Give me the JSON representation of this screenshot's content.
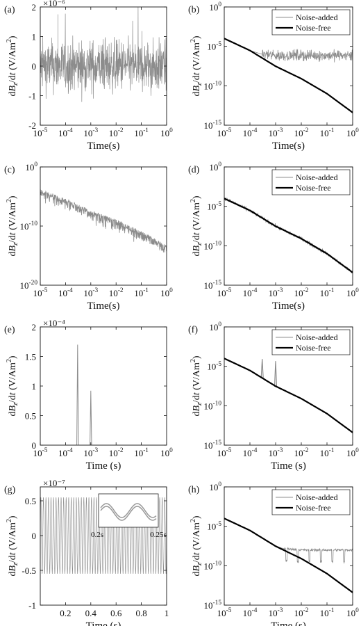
{
  "figure": {
    "xlabel": "Time(s)",
    "xlabel_alt": "Time (s)",
    "ylabel": "dBz/dt (V/Am²)"
  },
  "chart_data": [
    {
      "id": "a",
      "label": "(a)",
      "type": "line",
      "xscale": "log",
      "yscale": "linear",
      "xlim": [
        1e-05,
        1
      ],
      "ylim": [
        -2e-06,
        2e-06
      ],
      "xlabel": "Time(s)",
      "ylabel": "dBz/dt (V/Am²)",
      "y_multiplier": "×10⁻⁶",
      "yticks": [
        "-2",
        "-1",
        "0",
        "1",
        "2"
      ],
      "legend": null,
      "series": [
        {
          "color": "#8c8c8c",
          "style": "noise",
          "x": [
            1e-05,
            1
          ],
          "y": [
            -1.3e-06,
            1.7e-06
          ]
        }
      ]
    },
    {
      "id": "b",
      "label": "(b)",
      "type": "line",
      "xscale": "log",
      "yscale": "log",
      "xlim": [
        1e-05,
        1
      ],
      "ylim": [
        1e-15,
        1
      ],
      "xlabel": "Time(s)",
      "ylabel": "dBz/dt (V/Am²)",
      "yticks": [
        "10⁻¹⁵",
        "10⁻¹⁰",
        "10⁻⁵",
        "10⁰"
      ],
      "legend": "top-right",
      "series": [
        {
          "name": "Noise-added",
          "color": "#8c8c8c",
          "x": [
            1e-05,
            0.0001,
            0.0003,
            0.001,
            0.01,
            0.1,
            1
          ],
          "y": [
            0.0001,
            3e-06,
            1e-06,
            7e-07,
            7e-07,
            7e-07,
            7e-07
          ]
        },
        {
          "name": "Noise-free",
          "color": "#000000",
          "x": [
            1e-05,
            0.0001,
            0.001,
            0.01,
            0.1,
            1
          ],
          "y": [
            0.0001,
            3e-06,
            3e-08,
            8e-10,
            1e-11,
            4e-14
          ]
        }
      ]
    },
    {
      "id": "c",
      "label": "(c)",
      "type": "line",
      "xscale": "log",
      "yscale": "log",
      "xlim": [
        1e-05,
        1
      ],
      "ylim": [
        1e-20,
        1
      ],
      "xlabel": "Time(s)",
      "ylabel": "dBz/dt (V/Am²)",
      "yticks": [
        "10⁻²⁰",
        "10⁻¹⁰",
        "10⁰"
      ],
      "legend": null,
      "series": [
        {
          "color": "#8c8c8c",
          "style": "noisy-decay",
          "x": [
            1e-05,
            0.0001,
            0.001,
            0.01,
            0.1,
            1
          ],
          "y": [
            0.0001,
            3e-06,
            3e-08,
            8e-10,
            1e-11,
            4e-14
          ]
        }
      ]
    },
    {
      "id": "d",
      "label": "(d)",
      "type": "line",
      "xscale": "log",
      "yscale": "log",
      "xlim": [
        1e-05,
        1
      ],
      "ylim": [
        1e-15,
        1
      ],
      "xlabel": "Time(s)",
      "ylabel": "dBz/dt (V/Am²)",
      "yticks": [
        "10⁻¹⁵",
        "10⁻¹⁰",
        "10⁻⁵",
        "10⁰"
      ],
      "legend": "top-right",
      "series": [
        {
          "name": "Noise-added",
          "color": "#8c8c8c",
          "x": [
            1e-05,
            0.0001,
            0.001,
            0.01,
            0.1,
            1
          ],
          "y": [
            0.0001,
            3e-06,
            3e-08,
            8e-10,
            1e-11,
            4e-14
          ]
        },
        {
          "name": "Noise-free",
          "color": "#000000",
          "x": [
            1e-05,
            0.0001,
            0.001,
            0.01,
            0.1,
            1
          ],
          "y": [
            0.0001,
            3e-06,
            3e-08,
            8e-10,
            1e-11,
            4e-14
          ]
        }
      ]
    },
    {
      "id": "e",
      "label": "(e)",
      "type": "line",
      "xscale": "log",
      "yscale": "linear",
      "xlim": [
        1e-05,
        1
      ],
      "ylim": [
        0,
        0.0002
      ],
      "xlabel": "Time (s)",
      "ylabel": "dBz/dt (V/Am²)",
      "y_multiplier": "×10⁻⁴",
      "yticks": [
        "0",
        "0.5",
        "1",
        "1.5",
        "2"
      ],
      "legend": null,
      "series": [
        {
          "color": "#8c8c8c",
          "style": "spikes",
          "x": [
            0.0003,
            0.001
          ],
          "y": [
            0.00017,
            9.2e-05
          ]
        }
      ]
    },
    {
      "id": "f",
      "label": "(f)",
      "type": "line",
      "xscale": "log",
      "yscale": "log",
      "xlim": [
        1e-05,
        1
      ],
      "ylim": [
        1e-15,
        1
      ],
      "xlabel": "Time (s)",
      "ylabel": "dBz/dt (V/Am²)",
      "yticks": [
        "10⁻¹⁵",
        "10⁻¹⁰",
        "10⁻⁵",
        "10⁰"
      ],
      "legend": "top-right",
      "series": [
        {
          "name": "Noise-added",
          "color": "#8c8c8c",
          "style": "spikes",
          "x": [
            0.0003,
            0.001
          ],
          "y": [
            0.00017,
            9.2e-05
          ]
        },
        {
          "name": "Noise-free",
          "color": "#000000",
          "x": [
            1e-05,
            0.0001,
            0.001,
            0.01,
            0.1,
            1
          ],
          "y": [
            0.0001,
            3e-06,
            3e-08,
            8e-10,
            1e-11,
            4e-14
          ]
        }
      ]
    },
    {
      "id": "g",
      "label": "(g)",
      "type": "line",
      "xscale": "linear",
      "yscale": "linear",
      "xlim": [
        0,
        1
      ],
      "ylim": [
        -1e-07,
        7e-08
      ],
      "xlabel": "Time (s)",
      "ylabel": "dBz/dt (V/Am²)",
      "y_multiplier": "×10⁻⁷",
      "yticks": [
        "-1",
        "-0.5",
        "0",
        "0.5"
      ],
      "xticks": [
        "0.2",
        "0.4",
        "0.6",
        "0.8",
        "1"
      ],
      "legend": null,
      "inset": {
        "x_labels": [
          "0.2s",
          "0.25s"
        ]
      },
      "series": [
        {
          "color": "#8c8c8c",
          "style": "oscillation",
          "x": [
            0,
            1
          ],
          "y": [
            -5.5e-08,
            5.5e-08
          ]
        }
      ]
    },
    {
      "id": "h",
      "label": "(h)",
      "type": "line",
      "xscale": "log",
      "yscale": "log",
      "xlim": [
        1e-05,
        1
      ],
      "ylim": [
        1e-15,
        1
      ],
      "xlabel": "Time (s)",
      "ylabel": "dBz/dt (V/Am²)",
      "yticks": [
        "10⁻¹⁵",
        "10⁻¹⁰",
        "10⁻⁵",
        "10⁰"
      ],
      "legend": "top-right",
      "series": [
        {
          "name": "Noise-added",
          "color": "#8c8c8c",
          "x": [
            1e-05,
            0.0001,
            0.001,
            0.002,
            0.01,
            0.1,
            1
          ],
          "y": [
            0.0001,
            3e-06,
            3e-08,
            1.5e-08,
            1e-08,
            1e-08,
            1e-08
          ]
        },
        {
          "name": "Noise-free",
          "color": "#000000",
          "x": [
            1e-05,
            0.0001,
            0.001,
            0.01,
            0.1,
            1
          ],
          "y": [
            0.0001,
            3e-06,
            3e-08,
            8e-10,
            1e-11,
            4e-14
          ]
        }
      ]
    }
  ]
}
